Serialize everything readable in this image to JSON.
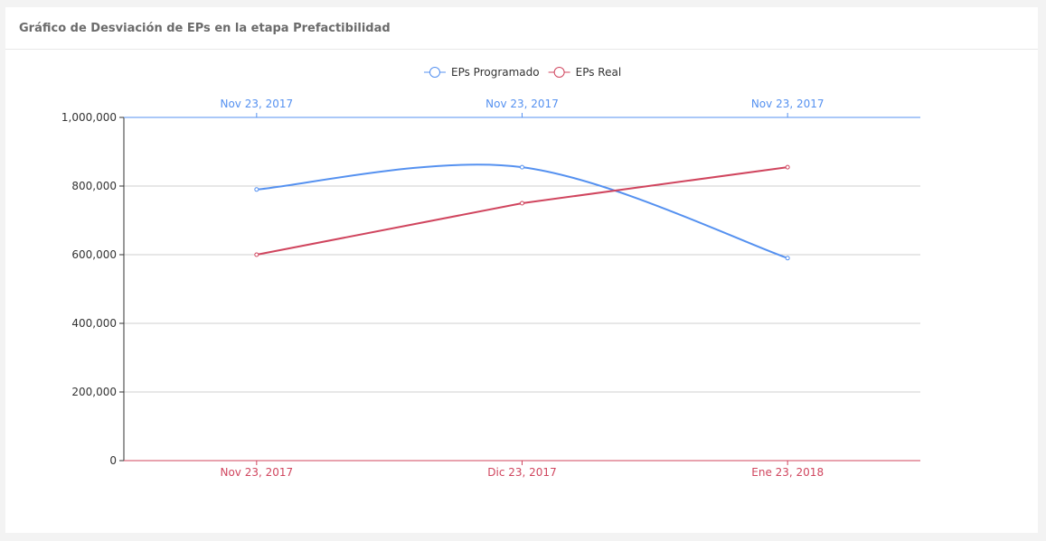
{
  "header": {
    "title": "Gráfico de Desviación de EPs en la etapa Prefactibilidad"
  },
  "chart_data": {
    "type": "line",
    "title": "Gráfico de Desviación de EPs en la etapa Prefactibilidad",
    "categories": [
      "Nov 23, 2017",
      "Dic 23, 2017",
      "Ene 23, 2018"
    ],
    "top_categories": [
      "Nov 23, 2017",
      "Nov 23, 2017",
      "Nov 23, 2017"
    ],
    "ylim": [
      0,
      1000000
    ],
    "yticks": [
      0,
      200000,
      400000,
      600000,
      800000,
      1000000
    ],
    "ytick_labels": [
      "0",
      "200,000",
      "400,000",
      "600,000",
      "800,000",
      "1,000,000"
    ],
    "legend_position": "top-center",
    "grid": true,
    "series": [
      {
        "name": "EPs Programado",
        "color": "#5591f0",
        "values": [
          790000,
          855000,
          590000
        ],
        "smooth": true,
        "axis": "top"
      },
      {
        "name": "EPs Real",
        "color": "#d0455e",
        "values": [
          600000,
          750000,
          855000
        ],
        "smooth": false,
        "axis": "bottom"
      }
    ]
  }
}
